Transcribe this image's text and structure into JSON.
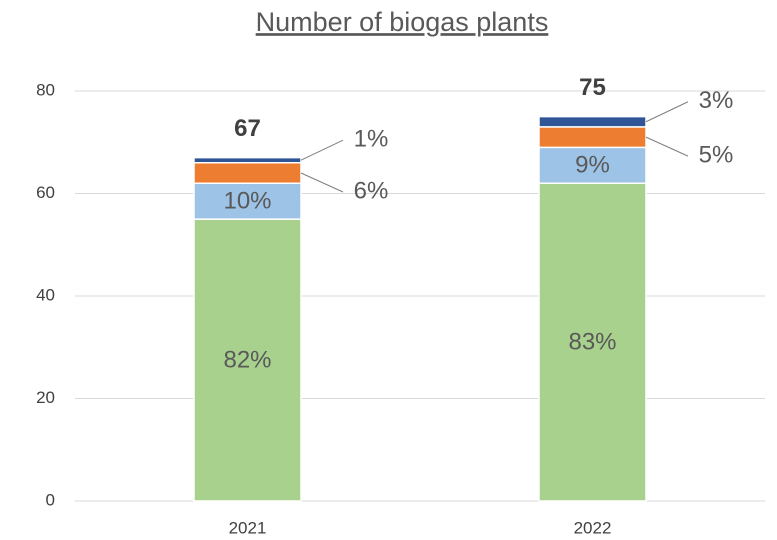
{
  "chart_data": {
    "type": "stacked_bar",
    "title": "Number of biogas plants",
    "categories": [
      "2021",
      "2022"
    ],
    "series": [
      {
        "color": "#a9d18e",
        "values": [
          55,
          62
        ],
        "share_labels": [
          "82%",
          "83%"
        ]
      },
      {
        "color": "#9dc3e6",
        "values": [
          7,
          7
        ],
        "share_labels": [
          "10%",
          "9%"
        ]
      },
      {
        "color": "#ed7d31",
        "values": [
          4,
          4
        ],
        "share_labels": [
          "6%",
          "5%"
        ]
      },
      {
        "color": "#2f5597",
        "values": [
          1,
          2
        ],
        "share_labels": [
          "1%",
          "3%"
        ]
      }
    ],
    "totals": [
      67,
      75
    ],
    "ylim": [
      0,
      80
    ],
    "yticks": [
      0,
      20,
      40,
      60,
      80
    ],
    "grid": true
  }
}
